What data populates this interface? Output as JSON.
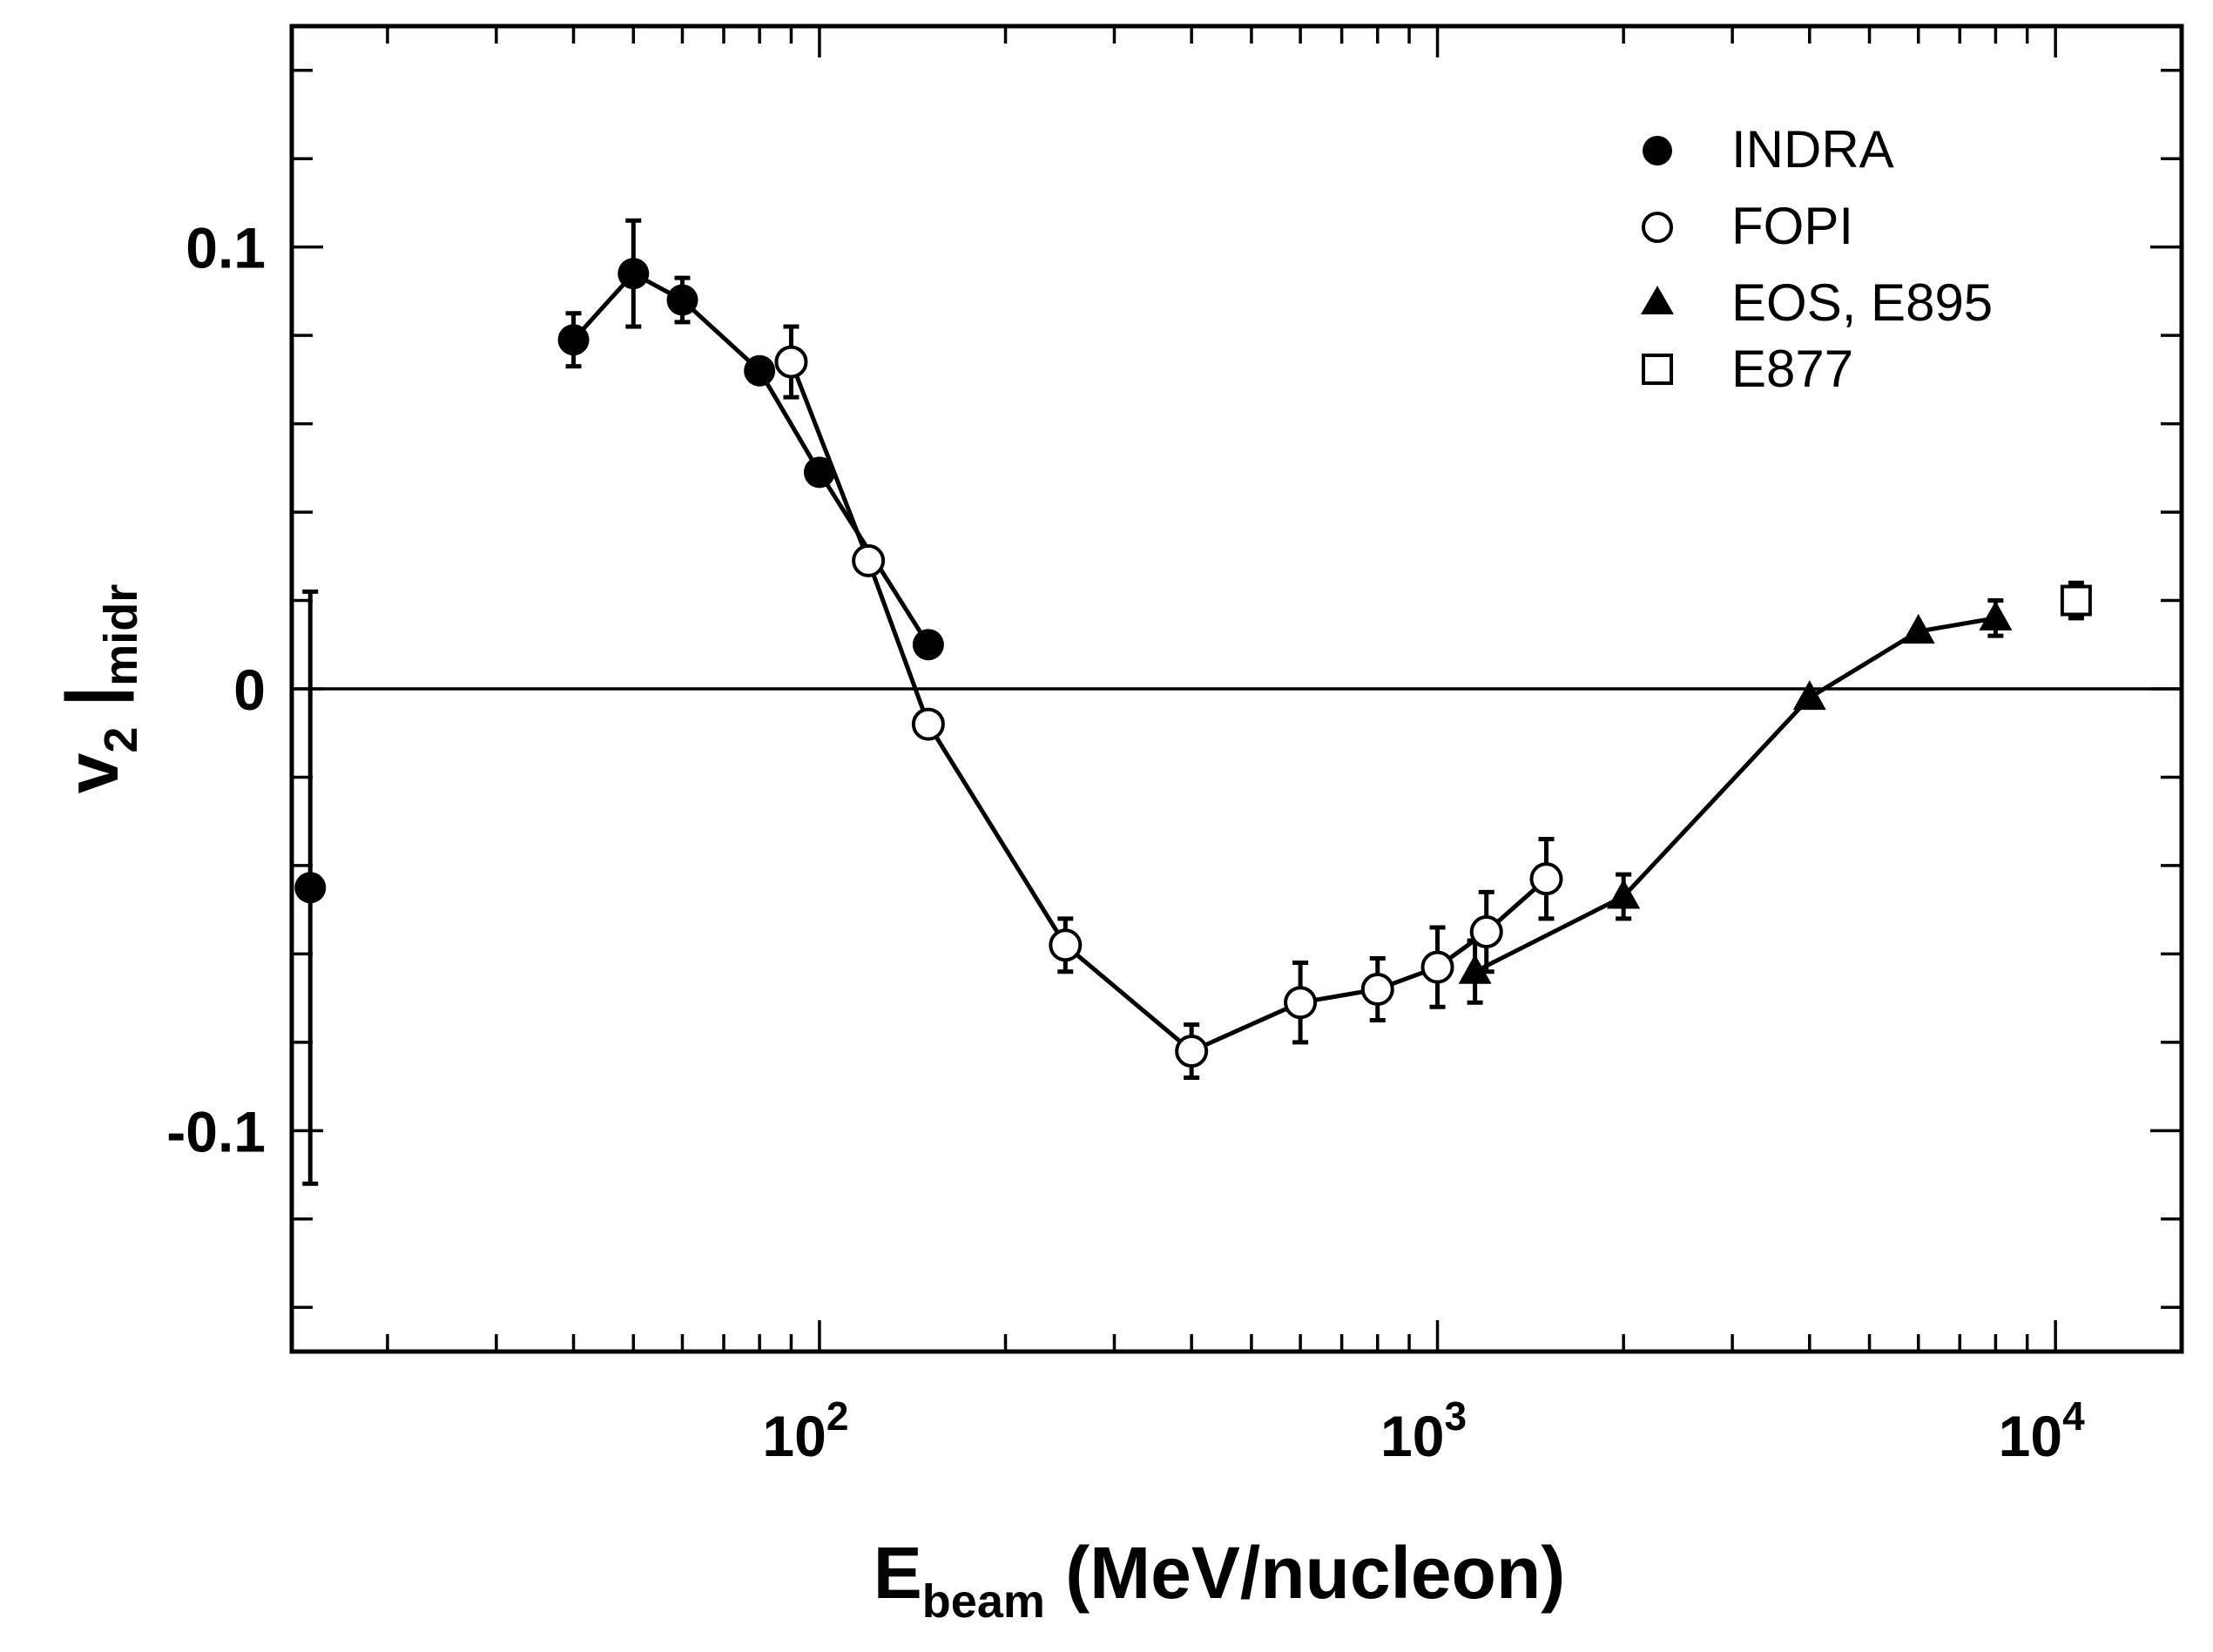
{
  "chart_data": {
    "type": "scatter",
    "xscale": "log",
    "xlim": [
      14,
      16000
    ],
    "ylim": [
      -0.15,
      0.15
    ],
    "xlabel": "E",
    "xlabel_sub": "beam",
    "xlabel_rest": " (MeV/nucleon)",
    "ylabel": "v",
    "ylabel_sub": "2",
    "ylabel_rest": " |",
    "ylabel_sub2": "midr",
    "x_ticklabels": [
      {
        "x": 100,
        "base": "10",
        "exp": "2"
      },
      {
        "x": 1000,
        "base": "10",
        "exp": "3"
      },
      {
        "x": 10000,
        "base": "10",
        "exp": "4"
      }
    ],
    "y_ticklabels": [
      {
        "y": 0.1,
        "label": "0.1"
      },
      {
        "y": 0.0,
        "label": "0"
      },
      {
        "y": -0.1,
        "label": "-0.1"
      }
    ],
    "y_minor_ticks": [
      -0.14,
      -0.12,
      -0.1,
      -0.08,
      -0.06,
      -0.04,
      -0.02,
      0.0,
      0.02,
      0.04,
      0.06,
      0.08,
      0.1,
      0.12,
      0.14
    ],
    "zero_line": true,
    "series": [
      {
        "name": "INDRA",
        "marker": "filled-circle",
        "points": [
          {
            "x": 15,
            "y": -0.045,
            "err": 0.067,
            "connected": false
          },
          {
            "x": 40,
            "y": 0.079,
            "err": 0.006
          },
          {
            "x": 50,
            "y": 0.094,
            "err": 0.012
          },
          {
            "x": 60,
            "y": 0.088,
            "err": 0.005
          },
          {
            "x": 80,
            "y": 0.072,
            "err": 0.0
          },
          {
            "x": 100,
            "y": 0.049,
            "err": 0.0
          },
          {
            "x": 150,
            "y": 0.01,
            "err": 0.0
          }
        ]
      },
      {
        "name": "FOPI",
        "marker": "open-circle",
        "points": [
          {
            "x": 90,
            "y": 0.074,
            "err": 0.008
          },
          {
            "x": 120,
            "y": 0.029,
            "err": 0.0
          },
          {
            "x": 150,
            "y": -0.008,
            "err": 0.0
          },
          {
            "x": 250,
            "y": -0.058,
            "err": 0.006
          },
          {
            "x": 400,
            "y": -0.082,
            "err": 0.006
          },
          {
            "x": 600,
            "y": -0.071,
            "err": 0.009
          },
          {
            "x": 800,
            "y": -0.068,
            "err": 0.007
          },
          {
            "x": 1000,
            "y": -0.063,
            "err": 0.009
          },
          {
            "x": 1200,
            "y": -0.055,
            "err": 0.009
          },
          {
            "x": 1500,
            "y": -0.043,
            "err": 0.009
          }
        ]
      },
      {
        "name": "EOS, E895",
        "marker": "filled-triangle",
        "points": [
          {
            "x": 1150,
            "y": -0.064,
            "err": 0.007
          },
          {
            "x": 2000,
            "y": -0.047,
            "err": 0.005
          },
          {
            "x": 4000,
            "y": -0.002,
            "err": 0.0
          },
          {
            "x": 6000,
            "y": 0.013,
            "err": 0.0
          },
          {
            "x": 8000,
            "y": 0.016,
            "err": 0.004
          }
        ]
      },
      {
        "name": "E877",
        "marker": "open-square",
        "points": [
          {
            "x": 10800,
            "y": 0.02,
            "err": 0.004
          }
        ]
      }
    ],
    "legend_position": "top-right"
  }
}
